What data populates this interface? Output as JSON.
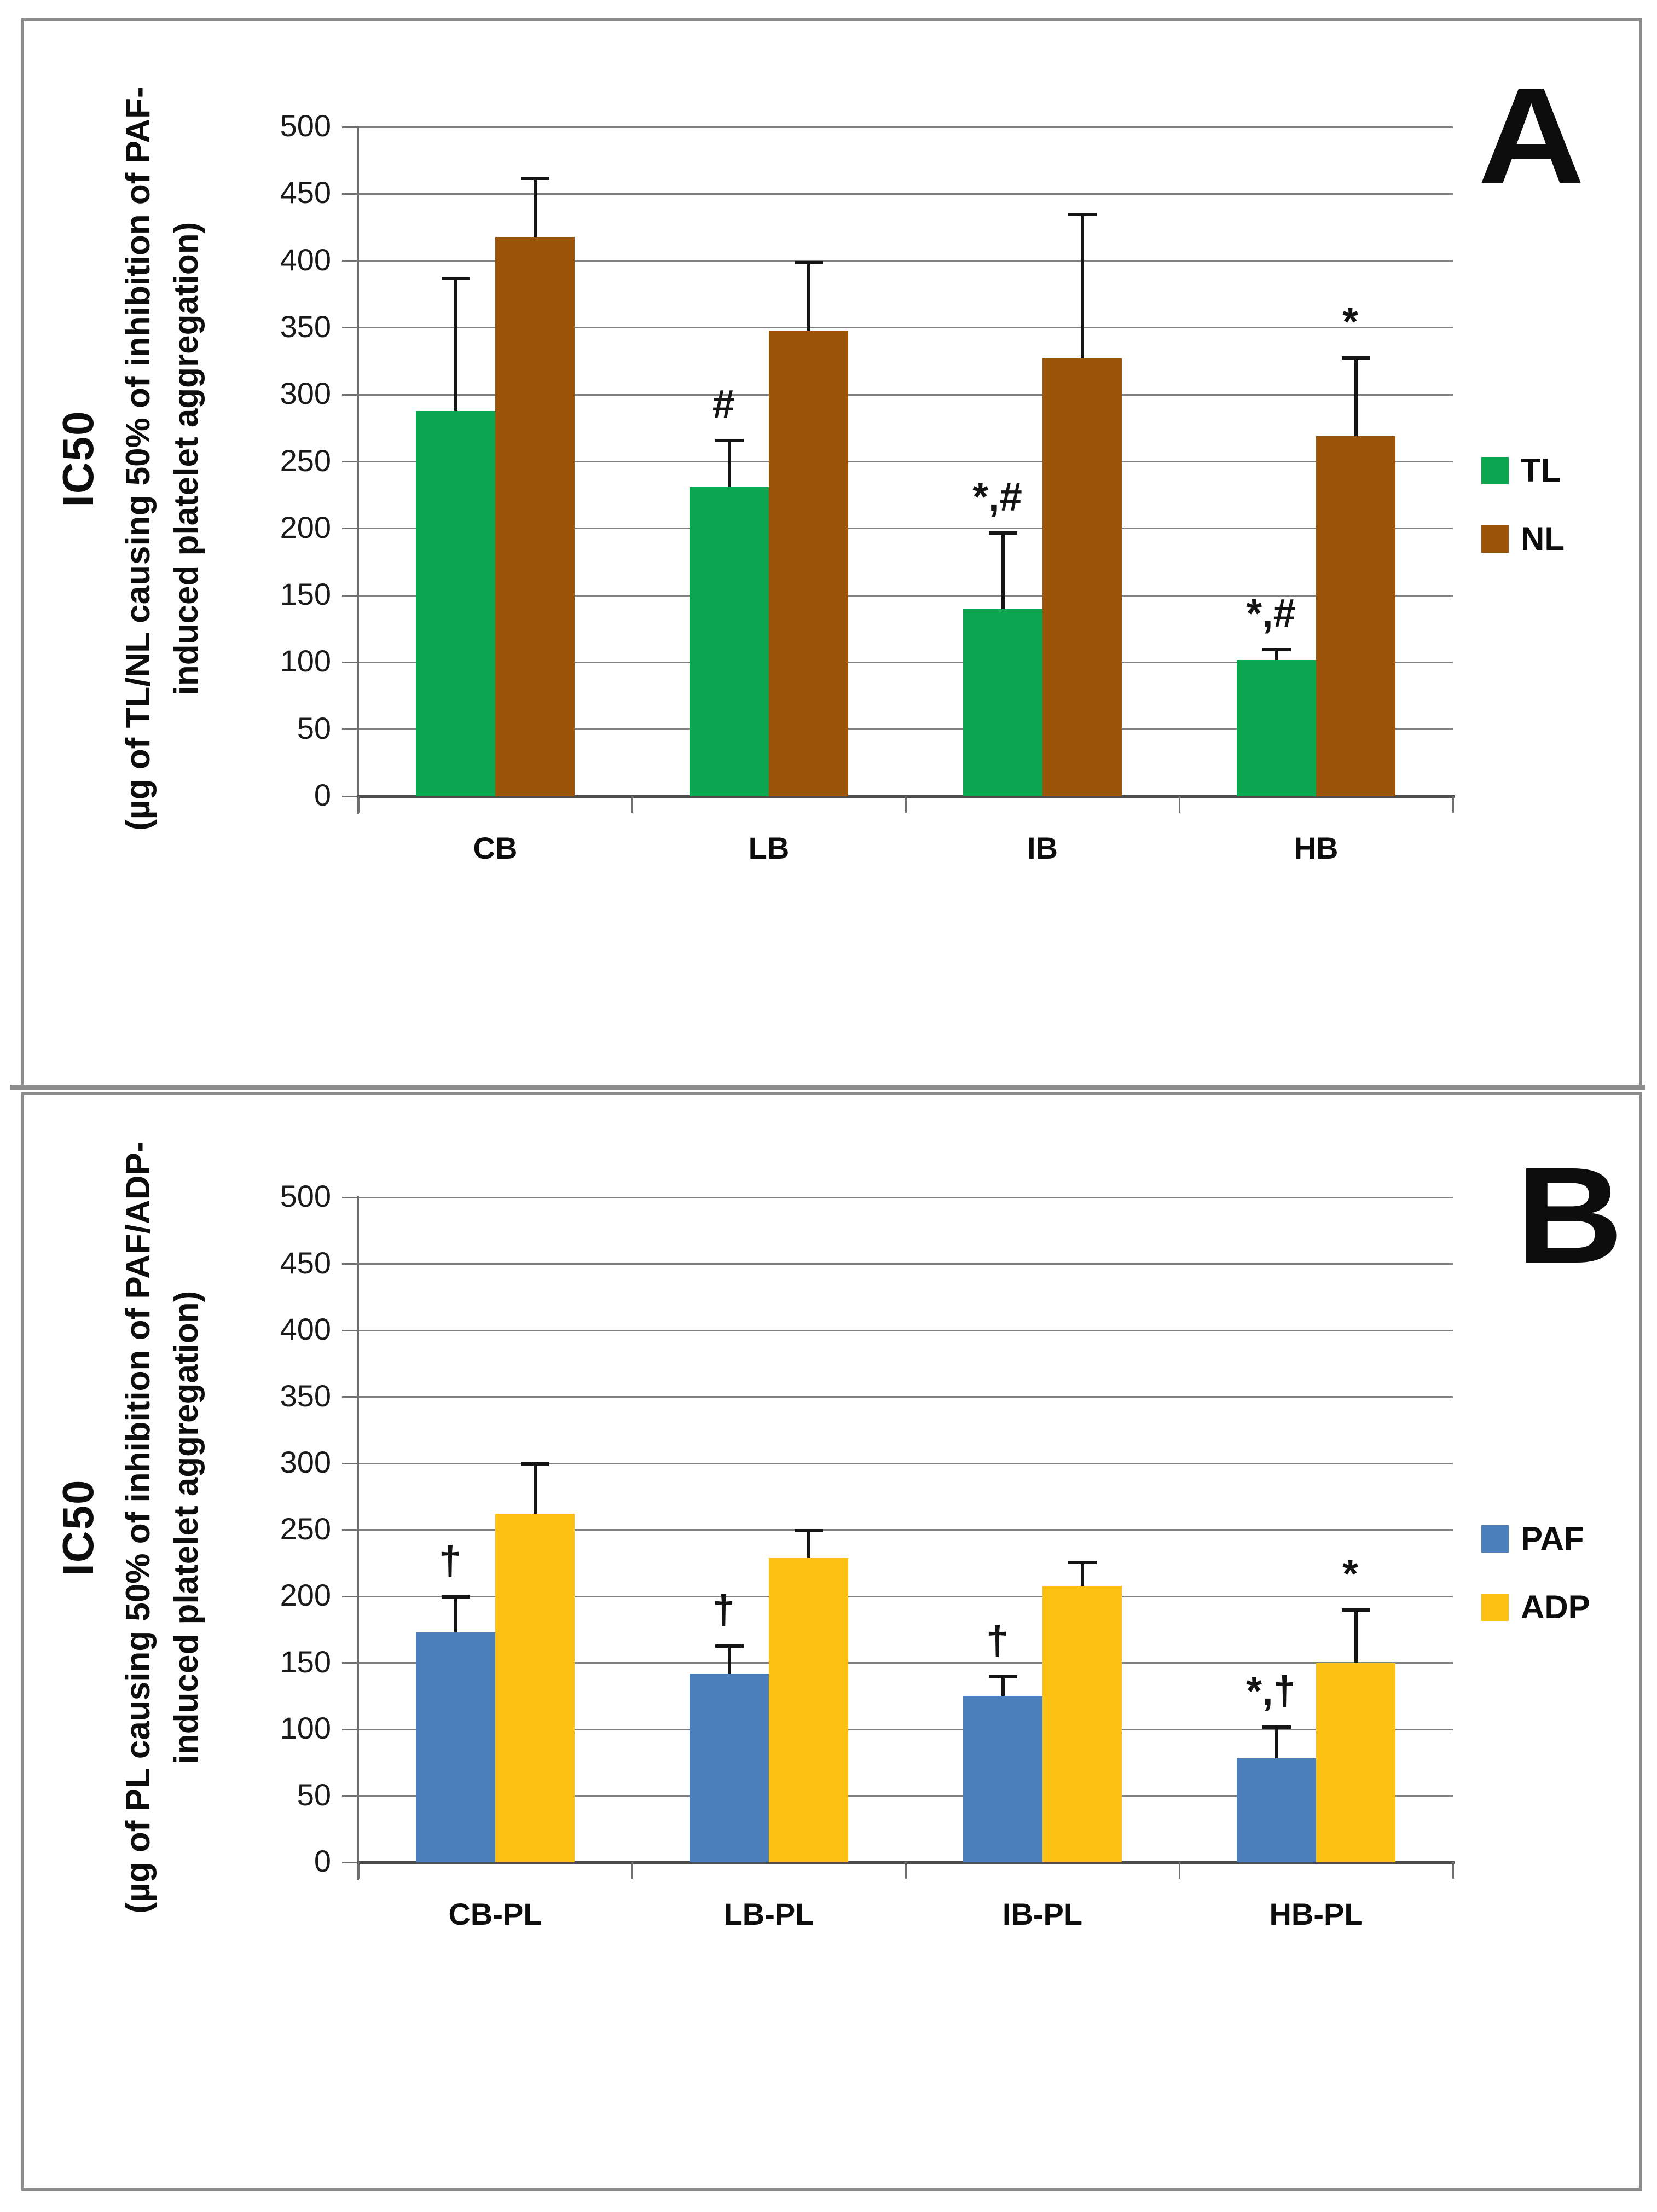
{
  "panels": [
    {
      "label": "A",
      "ylabel_lines": [
        "IC50",
        "(µg of TL/NL causing 50% of inhibition of PAF-",
        "induced platelet aggregation)"
      ]
    },
    {
      "label": "B",
      "ylabel_lines": [
        "IC50",
        "(µg of PL causing 50% of inhibition of PAF/ADP-",
        "induced platelet aggregation)"
      ]
    }
  ],
  "chart_data": [
    {
      "type": "bar",
      "title": "",
      "xlabel": "",
      "ylabel": "IC50 (µg of TL/NL causing 50% of inhibition of PAF-induced platelet aggregation)",
      "categories": [
        "CB",
        "LB",
        "IB",
        "HB"
      ],
      "series": [
        {
          "name": "TL",
          "color": "#0BA750",
          "values": [
            288,
            231,
            140,
            102
          ],
          "errors_up": [
            99,
            35,
            57,
            8
          ],
          "annotations": [
            "",
            "#",
            "*,#",
            "*,#"
          ]
        },
        {
          "name": "NL",
          "color": "#9B5408",
          "values": [
            418,
            348,
            327,
            269
          ],
          "errors_up": [
            44,
            51,
            108,
            59
          ],
          "annotations": [
            "",
            "",
            "",
            "*"
          ]
        }
      ],
      "ylim": [
        0,
        500
      ],
      "yticks": [
        0,
        50,
        100,
        150,
        200,
        250,
        300,
        350,
        400,
        450,
        500
      ],
      "grid": true,
      "legend_position": "right"
    },
    {
      "type": "bar",
      "title": "",
      "xlabel": "",
      "ylabel": "IC50 (µg of PL causing 50% of inhibition of PAF/ADP-induced platelet aggregation)",
      "categories": [
        "CB-PL",
        "LB-PL",
        "IB-PL",
        "HB-PL"
      ],
      "series": [
        {
          "name": "PAF",
          "color": "#4C80BD",
          "values": [
            173,
            142,
            125,
            78
          ],
          "errors_up": [
            27,
            21,
            15,
            24
          ],
          "annotations": [
            "†",
            "†",
            "†",
            "*,†"
          ]
        },
        {
          "name": "ADP",
          "color": "#FCC113",
          "values": [
            262,
            229,
            208,
            150
          ],
          "errors_up": [
            38,
            21,
            18,
            40
          ],
          "annotations": [
            "",
            "",
            "",
            "*"
          ]
        }
      ],
      "ylim": [
        0,
        500
      ],
      "yticks": [
        0,
        50,
        100,
        150,
        200,
        250,
        300,
        350,
        400,
        450,
        500
      ],
      "grid": true,
      "legend_position": "right"
    }
  ],
  "colors": {
    "tl_green": "#0BA750",
    "nl_brown": "#9B5408",
    "paf_blue": "#4C80BD",
    "adp_yellow": "#FCC113",
    "gridline": "#808080",
    "panel_border": "#8c8c8c"
  }
}
